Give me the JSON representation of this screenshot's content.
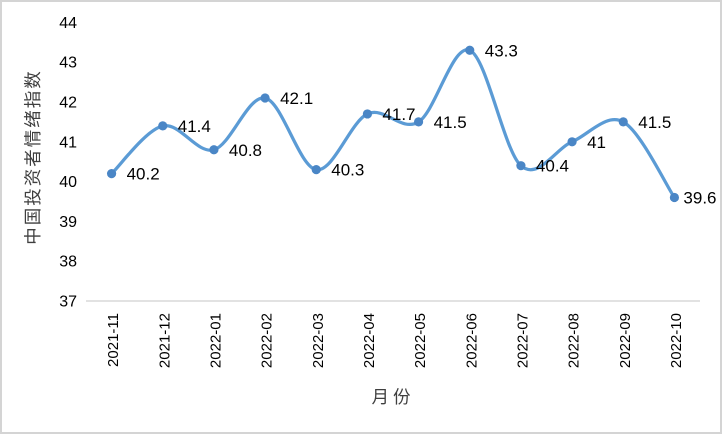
{
  "chart_data": {
    "type": "line",
    "smooth": true,
    "markers": true,
    "grid": false,
    "legend": "none",
    "title": "",
    "xlabel": "月份",
    "ylabel": "中国投资者情绪指数",
    "x": [
      "2021-11",
      "2021-12",
      "2022-01",
      "2022-02",
      "2022-03",
      "2022-04",
      "2022-05",
      "2022-06",
      "2022-07",
      "2022-08",
      "2022-09",
      "2022-10"
    ],
    "values": [
      40.2,
      41.4,
      40.8,
      42.1,
      40.3,
      41.7,
      41.5,
      43.3,
      40.4,
      41,
      41.5,
      39.6
    ],
    "point_labels": [
      "40.2",
      "41.4",
      "40.8",
      "42.1",
      "40.3",
      "41.7",
      "41.5",
      "43.3",
      "40.4",
      "41",
      "41.5",
      "39.6"
    ],
    "ylim": [
      37,
      44
    ],
    "yticks": [
      "37",
      "38",
      "39",
      "40",
      "41",
      "42",
      "43",
      "44"
    ],
    "colors": {
      "line": "#5B9BD5",
      "marker": "#4A86C6",
      "tick_text": "#000000",
      "title_text": "#3F3F3F",
      "axis_line": "#D9D9D9",
      "frame_border": "#D4D4D4",
      "background": "#FFFFFF"
    }
  }
}
